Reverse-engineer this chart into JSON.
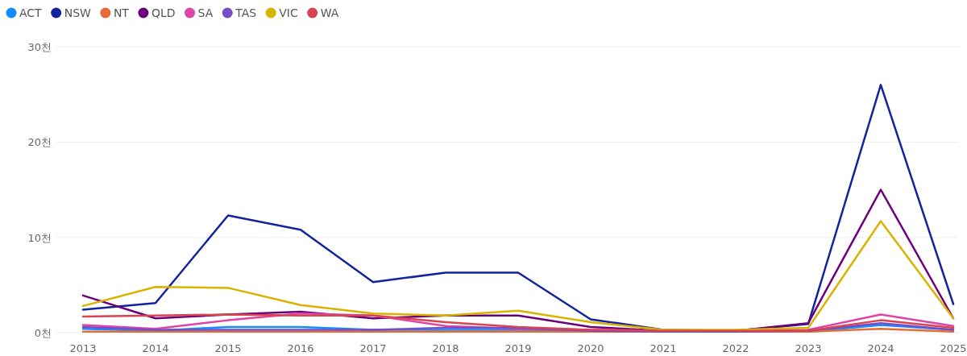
{
  "chart_data": {
    "type": "line",
    "categories": [
      "2013",
      "2014",
      "2015",
      "2016",
      "2017",
      "2018",
      "2019",
      "2020",
      "2021",
      "2022",
      "2023",
      "2024",
      "2025"
    ],
    "series": [
      {
        "name": "ACT",
        "color": "#118dff",
        "values": [
          0.4,
          0.2,
          0.6,
          0.6,
          0.3,
          0.3,
          0.3,
          0.2,
          0.1,
          0.1,
          0.1,
          0.8,
          0.3
        ]
      },
      {
        "name": "NSW",
        "color": "#12239e",
        "values": [
          2.4,
          3.1,
          12.3,
          10.8,
          5.3,
          6.3,
          6.3,
          1.4,
          0.3,
          0.2,
          0.9,
          26,
          3
        ]
      },
      {
        "name": "NT",
        "color": "#e66c37",
        "values": [
          0.1,
          0.1,
          0.1,
          0.1,
          0.1,
          0.1,
          0.1,
          0.1,
          0.1,
          0.1,
          0.1,
          0.4,
          0.1
        ]
      },
      {
        "name": "QLD",
        "color": "#6b007b",
        "values": [
          3.9,
          1.5,
          1.9,
          2.2,
          1.5,
          1.8,
          1.8,
          0.6,
          0.2,
          0.2,
          1,
          15,
          1.5
        ]
      },
      {
        "name": "SA",
        "color": "#e044a7",
        "values": [
          0.8,
          0.4,
          1.3,
          2,
          1.8,
          0.7,
          0.4,
          0.3,
          0.2,
          0.2,
          0.3,
          1.9,
          0.7
        ]
      },
      {
        "name": "TAS",
        "color": "#744ec2",
        "values": [
          0.6,
          0.3,
          0.3,
          0.3,
          0.3,
          0.5,
          0.5,
          0.2,
          0.1,
          0.1,
          0.2,
          1,
          0.3
        ]
      },
      {
        "name": "VIC",
        "color": "#d9b300",
        "values": [
          2.8,
          4.8,
          4.7,
          2.9,
          2,
          1.8,
          2.3,
          1.1,
          0.3,
          0.3,
          0.5,
          11.7,
          1.5
        ]
      },
      {
        "name": "WA",
        "color": "#d64550",
        "values": [
          1.7,
          1.8,
          1.9,
          1.8,
          1.8,
          1.1,
          0.6,
          0.3,
          0.2,
          0.2,
          0.2,
          1.3,
          0.5
        ]
      }
    ],
    "ylim": [
      0,
      30
    ],
    "yticks": [
      {
        "value": 0,
        "label": "0천"
      },
      {
        "value": 10,
        "label": "10천"
      },
      {
        "value": 20,
        "label": "20천"
      },
      {
        "value": 30,
        "label": "30천"
      }
    ],
    "grid": "y",
    "legend": "top left",
    "marker": "none",
    "line_style": "solid"
  }
}
